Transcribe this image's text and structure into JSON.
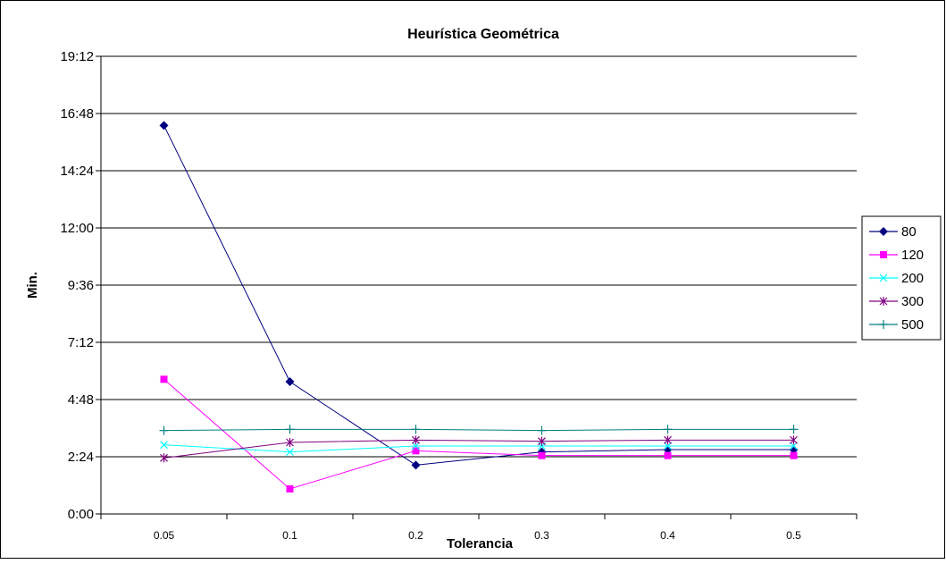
{
  "chart_data": {
    "type": "line",
    "title": "Heurística Geométrica",
    "xlabel": "Tolerancia",
    "ylabel": "Min.",
    "categories": [
      "0.05",
      "0.1",
      "0.2",
      "0.3",
      "0.4",
      "0.5"
    ],
    "y_ticks": [
      "0:00",
      "2:24",
      "4:48",
      "7:12",
      "9:36",
      "12:00",
      "14:24",
      "16:48",
      "19:12"
    ],
    "ylim_minutes": [
      0,
      19.2
    ],
    "y_unit": "minutes (tick labels in m:ss)",
    "grid": "horizontal",
    "legend_position": "right",
    "series": [
      {
        "name": "80",
        "color": "#000080",
        "marker": "diamond",
        "values": [
          16.3,
          5.55,
          2.05,
          2.6,
          2.7,
          2.7
        ]
      },
      {
        "name": "120",
        "color": "#ff00ff",
        "marker": "square",
        "values": [
          5.65,
          1.05,
          2.65,
          2.45,
          2.45,
          2.45
        ]
      },
      {
        "name": "200",
        "color": "#00ffff",
        "marker": "x",
        "values": [
          2.9,
          2.6,
          2.85,
          2.85,
          2.85,
          2.85
        ]
      },
      {
        "name": "300",
        "color": "#800080",
        "marker": "star",
        "values": [
          2.35,
          3.0,
          3.1,
          3.05,
          3.1,
          3.1
        ]
      },
      {
        "name": "500",
        "color": "#008080",
        "marker": "plus",
        "values": [
          3.5,
          3.55,
          3.55,
          3.5,
          3.55,
          3.55
        ]
      }
    ]
  }
}
